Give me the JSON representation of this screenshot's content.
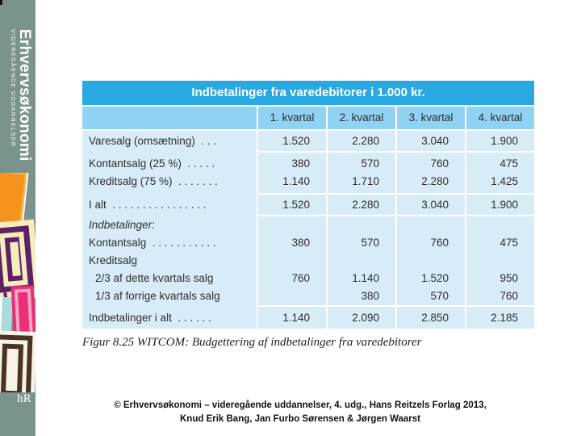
{
  "sidebar": {
    "brand_title": "Erhvervsøkonomi",
    "brand_subtitle": "VIDEREGÅENDE UDDANNELSER",
    "publisher_logo": "hR"
  },
  "table": {
    "title": "Indbetalinger fra varedebitorer i 1.000 kr.",
    "columns": [
      "1. kvartal",
      "2. kvartal",
      "3. kvartal",
      "4. kvartal"
    ],
    "rows": [
      {
        "lines": [
          {
            "label": "Varesalg (omsætning)  . . .",
            "values": [
              "1.520",
              "2.280",
              "3.040",
              "1.900"
            ]
          }
        ]
      },
      {
        "lines": [
          {
            "label": "Kontantsalg (25 %)  . . . . .",
            "values": [
              "380",
              "570",
              "760",
              "475"
            ]
          },
          {
            "label": "Kreditsalg (75 %)  . . . . . . .",
            "values": [
              "1.140",
              "1.710",
              "2.280",
              "1.425"
            ]
          }
        ]
      },
      {
        "lines": [
          {
            "label": "I alt  . . . . . . . . . . . . . . . .",
            "values": [
              "1.520",
              "2.280",
              "3.040",
              "1.900"
            ]
          }
        ]
      },
      {
        "lines": [
          {
            "label": "Indbetalinger:",
            "italic": true,
            "values": [
              "",
              "",
              "",
              ""
            ]
          },
          {
            "label": "Kontantsalg  . . . . . . . . . . .",
            "values": [
              "380",
              "570",
              "760",
              "475"
            ]
          },
          {
            "label": "Kreditsalg",
            "values": [
              "",
              "",
              "",
              ""
            ]
          },
          {
            "label": "2/3 af dette kvartals salg",
            "indent": true,
            "values": [
              "760",
              "1.140",
              "1.520",
              "950"
            ]
          },
          {
            "label": "1/3 af forrige kvartals salg",
            "indent": true,
            "values": [
              "",
              "380",
              "570",
              "760"
            ]
          }
        ]
      },
      {
        "lines": [
          {
            "label": "Indbetalinger i alt  . . . . . .",
            "values": [
              "1.140",
              "2.090",
              "2.850",
              "2.185"
            ]
          }
        ]
      }
    ]
  },
  "caption": "Figur 8.25 WITCOM: Budgettering af indbetalinger fra varedebitorer",
  "footer": {
    "line1": "© Erhvervsøkonomi – videregående uddannelser, 4. udg., Hans Reitzels Forlag 2013,",
    "line2": "Knud Erik Bang, Jan Furbo Sørensen & Jørgen Waarst"
  },
  "colors": {
    "title_bar": "#29A9E1",
    "header_row": "#8FD2F4",
    "table_body": "#D8ECF8",
    "sidebar": "#7A948D",
    "art_orange": "#F6921E",
    "art_purple": "#5E2263",
    "art_cream": "#F5ECC0",
    "art_pink": "#EC2E7A",
    "art_cyan": "#A8DBD9",
    "art_brown": "#473423"
  }
}
